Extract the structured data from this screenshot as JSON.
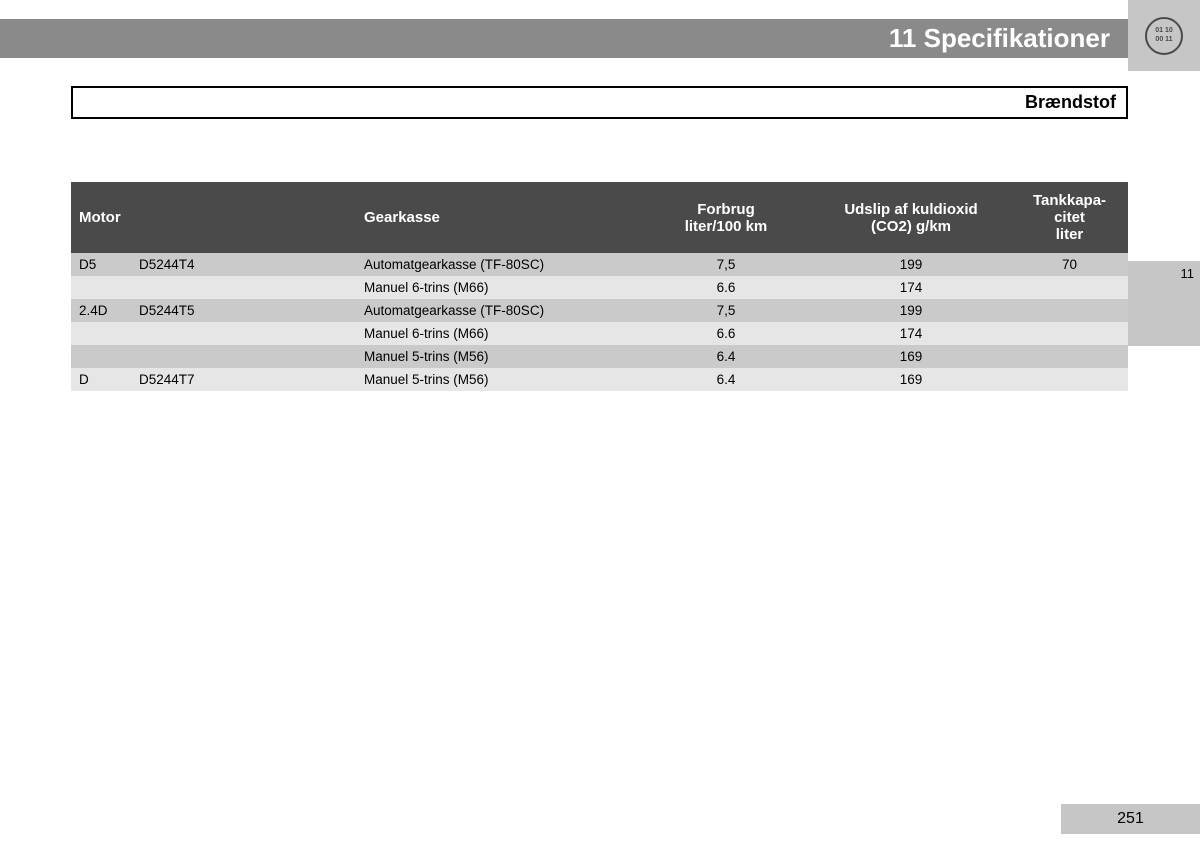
{
  "header": {
    "title": "11 Specifikationer",
    "icon_lines": [
      "01 10",
      "00 11"
    ],
    "background_color": "#8a8a8a",
    "icon_box_color": "#c6c6c6"
  },
  "subtitle": "Brændstof",
  "side_tab": "11",
  "page_number": "251",
  "table": {
    "header_bg": "#4a4a4a",
    "header_fg": "#ffffff",
    "row_dark_bg": "#cacaca",
    "row_light_bg": "#e6e6e6",
    "columns": [
      {
        "label": "Motor",
        "align": "left",
        "span": 2
      },
      {
        "label": "Gearkasse",
        "align": "left"
      },
      {
        "label_line1": "Forbrug",
        "label_line2": "liter/100 km",
        "align": "center"
      },
      {
        "label_line1": "Udslip af kuldioxid",
        "label_line2": "(CO2) g/km",
        "align": "center"
      },
      {
        "label_line1": "Tankkapa-",
        "label_line2": "citet",
        "label_line3": "liter",
        "align": "center"
      }
    ],
    "rows": [
      {
        "motor": "D5",
        "code": "D5244T4",
        "gear": "Automatgearkasse (TF-80SC)",
        "forbrug": "7,5",
        "co2": "199",
        "tank": "70",
        "shade": "dark"
      },
      {
        "motor": "",
        "code": "",
        "gear": "Manuel 6-trins (M66)",
        "forbrug": "6.6",
        "co2": "174",
        "tank": "",
        "shade": "light"
      },
      {
        "motor": "2.4D",
        "code": "D5244T5",
        "gear": "Automatgearkasse (TF-80SC)",
        "forbrug": "7,5",
        "co2": "199",
        "tank": "",
        "shade": "dark"
      },
      {
        "motor": "",
        "code": "",
        "gear": "Manuel 6-trins (M66)",
        "forbrug": "6.6",
        "co2": "174",
        "tank": "",
        "shade": "light"
      },
      {
        "motor": "",
        "code": "",
        "gear": "Manuel 5-trins (M56)",
        "forbrug": "6.4",
        "co2": "169",
        "tank": "",
        "shade": "dark"
      },
      {
        "motor": "D",
        "code": "D5244T7",
        "gear": "Manuel 5-trins (M56)",
        "forbrug": "6.4",
        "co2": "169",
        "tank": "",
        "shade": "light"
      }
    ]
  }
}
